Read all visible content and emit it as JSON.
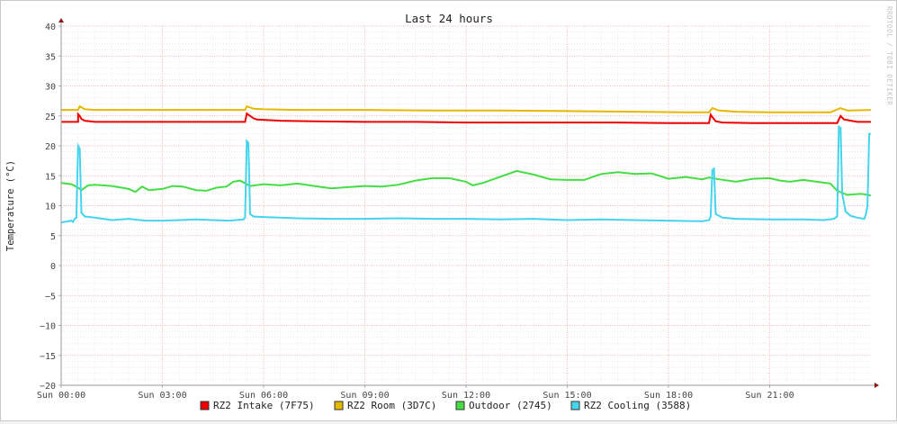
{
  "chart_data": {
    "type": "line",
    "title": "Last 24 hours",
    "ylabel": "Temperature (°C)",
    "watermark": "RRDTOOL / TOBI OETIKER",
    "ylim": [
      -20,
      40
    ],
    "y_ticks": [
      40,
      35,
      30,
      25,
      20,
      15,
      10,
      5,
      0,
      -5,
      -10,
      -15,
      -20
    ],
    "x_ticks": [
      "Sun 00:00",
      "Sun 03:00",
      "Sun 06:00",
      "Sun 09:00",
      "Sun 12:00",
      "Sun 15:00",
      "Sun 18:00",
      "Sun 21:00"
    ],
    "x_range_hours": [
      0,
      24
    ],
    "grid": true,
    "legend_placement": "bottom",
    "series": [
      {
        "name": "RZ2 Intake (7F75)",
        "color": "#ee0000",
        "x": [
          0,
          0.5,
          0.5,
          0.55,
          0.6,
          0.7,
          1.0,
          2.0,
          3.0,
          4.0,
          5.0,
          5.45,
          5.5,
          5.6,
          5.7,
          5.8,
          6.5,
          7.5,
          9.0,
          10.5,
          12.0,
          13.5,
          15.0,
          16.5,
          18.0,
          19.0,
          19.2,
          19.25,
          19.3,
          19.4,
          19.6,
          20.5,
          21.5,
          22.5,
          22.8,
          23.0,
          23.1,
          23.2,
          23.6,
          24.0
        ],
        "values": [
          24.0,
          24.0,
          25.3,
          25.0,
          24.5,
          24.2,
          24.0,
          24.0,
          24.0,
          24.0,
          24.0,
          24.0,
          25.4,
          25.0,
          24.6,
          24.4,
          24.2,
          24.1,
          24.0,
          24.0,
          23.9,
          23.9,
          23.9,
          23.9,
          23.8,
          23.8,
          23.8,
          25.2,
          24.8,
          24.1,
          23.9,
          23.8,
          23.8,
          23.8,
          23.8,
          23.8,
          25.0,
          24.4,
          24.0,
          24.0
        ]
      },
      {
        "name": "RZ2 Room (3D7C)",
        "color": "#e6b800",
        "x": [
          0,
          0.5,
          0.55,
          0.7,
          1.0,
          2.0,
          3.0,
          4.0,
          5.0,
          5.45,
          5.5,
          5.7,
          6.0,
          7.0,
          9.0,
          11.0,
          13.0,
          15.0,
          17.0,
          18.5,
          19.2,
          19.3,
          19.5,
          20.0,
          21.0,
          22.0,
          22.8,
          23.1,
          23.3,
          24.0
        ],
        "values": [
          26.0,
          26.0,
          26.6,
          26.1,
          26.0,
          26.0,
          26.0,
          26.0,
          26.0,
          26.0,
          26.6,
          26.2,
          26.1,
          26.0,
          26.0,
          25.9,
          25.9,
          25.8,
          25.7,
          25.6,
          25.6,
          26.3,
          25.9,
          25.7,
          25.6,
          25.6,
          25.6,
          26.3,
          25.9,
          26.0
        ]
      },
      {
        "name": "Outdoor (2745)",
        "color": "#44dd44",
        "x": [
          0,
          0.3,
          0.5,
          0.6,
          0.8,
          1.0,
          1.5,
          2.0,
          2.2,
          2.4,
          2.6,
          3.0,
          3.3,
          3.6,
          4.0,
          4.3,
          4.6,
          4.9,
          5.1,
          5.3,
          5.6,
          6.0,
          6.5,
          7.0,
          7.5,
          8.0,
          8.5,
          9.0,
          9.5,
          10.0,
          10.5,
          11.0,
          11.5,
          12.0,
          12.2,
          12.5,
          13.0,
          13.5,
          14.0,
          14.5,
          15.0,
          15.5,
          16.0,
          16.5,
          17.0,
          17.5,
          18.0,
          18.5,
          19.0,
          19.2,
          19.5,
          20.0,
          20.5,
          21.0,
          21.3,
          21.6,
          22.0,
          22.4,
          22.8,
          23.0,
          23.3,
          23.7,
          24.0
        ],
        "values": [
          13.8,
          13.6,
          13.0,
          12.6,
          13.4,
          13.5,
          13.3,
          12.8,
          12.3,
          13.2,
          12.6,
          12.8,
          13.3,
          13.2,
          12.6,
          12.5,
          13.0,
          13.2,
          14.0,
          14.2,
          13.3,
          13.6,
          13.4,
          13.7,
          13.3,
          12.9,
          13.1,
          13.3,
          13.2,
          13.5,
          14.2,
          14.6,
          14.6,
          14.0,
          13.4,
          13.8,
          14.8,
          15.8,
          15.2,
          14.4,
          14.3,
          14.3,
          15.3,
          15.6,
          15.3,
          15.4,
          14.5,
          14.8,
          14.4,
          14.7,
          14.4,
          14.0,
          14.5,
          14.6,
          14.2,
          14.0,
          14.3,
          14.0,
          13.7,
          12.5,
          11.8,
          12.0,
          11.7
        ]
      },
      {
        "name": "RZ2 Cooling (3588)",
        "color": "#44d4ee",
        "x": [
          0,
          0.3,
          0.35,
          0.4,
          0.45,
          0.5,
          0.55,
          0.6,
          0.7,
          1.0,
          1.5,
          2.0,
          2.5,
          3.0,
          3.5,
          4.0,
          4.5,
          5.0,
          5.4,
          5.45,
          5.5,
          5.55,
          5.6,
          5.7,
          6.0,
          6.5,
          7.0,
          8.0,
          9.0,
          10.0,
          11.0,
          12.0,
          13.0,
          14.0,
          15.0,
          16.0,
          17.0,
          18.0,
          19.0,
          19.2,
          19.25,
          19.3,
          19.35,
          19.4,
          19.6,
          20.0,
          21.0,
          22.0,
          22.6,
          22.9,
          23.0,
          23.05,
          23.1,
          23.15,
          23.25,
          23.4,
          23.6,
          23.8,
          23.85,
          23.9,
          23.95,
          24.0
        ],
        "values": [
          7.2,
          7.5,
          7.3,
          7.8,
          8.0,
          20.0,
          19.5,
          8.8,
          8.2,
          8.0,
          7.6,
          7.8,
          7.5,
          7.5,
          7.6,
          7.7,
          7.6,
          7.5,
          7.7,
          8.0,
          20.8,
          20.5,
          8.6,
          8.2,
          8.1,
          8.0,
          7.9,
          7.8,
          7.8,
          7.9,
          7.8,
          7.8,
          7.7,
          7.8,
          7.6,
          7.7,
          7.6,
          7.5,
          7.4,
          7.6,
          8.2,
          16.0,
          16.2,
          8.6,
          8.0,
          7.8,
          7.7,
          7.7,
          7.6,
          7.8,
          8.2,
          23.2,
          23.0,
          12.0,
          9.0,
          8.3,
          8.0,
          7.8,
          8.5,
          10.0,
          22.0,
          22.0
        ]
      }
    ]
  }
}
